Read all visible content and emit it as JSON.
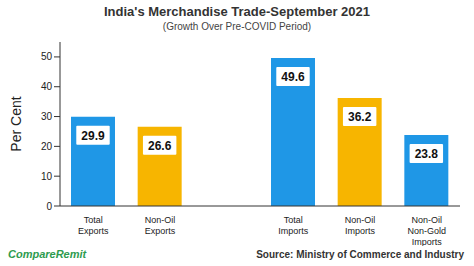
{
  "chart_data": {
    "type": "bar",
    "title": "India's Merchandise Trade-September 2021",
    "subtitle": "(Growth Over Pre-COVID Period)",
    "y_label": "Per Cent",
    "categories": [
      "Total Exports",
      "Non-Oil Exports",
      null,
      "Total Imports",
      "Non-Oil Imports",
      "Non-Oil Non-Gold Imports"
    ],
    "values": [
      29.9,
      26.6,
      null,
      49.6,
      36.2,
      23.8
    ],
    "colors": [
      "#1f97e6",
      "#f7b500",
      null,
      "#1f97e6",
      "#f7b500",
      "#1f97e6"
    ],
    "ylim": [
      0,
      55
    ],
    "yticks": [
      0,
      10,
      20,
      30,
      40,
      50
    ],
    "grid": false,
    "data_labels": true,
    "source": "Source: Ministry of Commerce and Industry",
    "brand": "CompareRemit"
  }
}
